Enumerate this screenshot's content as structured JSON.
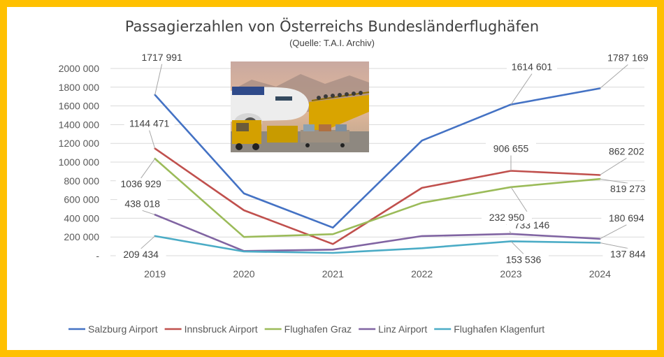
{
  "chart_data": {
    "type": "line",
    "title": "Passagierzahlen von Österreichs Bundesländerflughäfen",
    "subtitle": "(Quelle: T.A.I. Archiv)",
    "xlabel": "",
    "ylabel": "",
    "categories": [
      "2019",
      "2020",
      "2021",
      "2022",
      "2023",
      "2024"
    ],
    "ylim": [
      0,
      2000000
    ],
    "yticks": [
      "-",
      "200 000",
      "400 000",
      "600 000",
      "800 000",
      "1000 000",
      "1200 000",
      "1400 000",
      "1600 000",
      "1800 000",
      "2000 000"
    ],
    "grid": true,
    "legend_position": "bottom",
    "series": [
      {
        "name": "Salzburg Airport",
        "color": "#4472C4",
        "values": [
          1717991,
          665000,
          300000,
          1230000,
          1614601,
          1787169
        ]
      },
      {
        "name": "Innsbruck Airport",
        "color": "#C0504D",
        "values": [
          1144471,
          485000,
          125000,
          725000,
          906655,
          862202
        ]
      },
      {
        "name": "Flughafen Graz",
        "color": "#9BBB59",
        "values": [
          1036929,
          200000,
          230000,
          565000,
          733146,
          819273
        ]
      },
      {
        "name": "Linz Airport",
        "color": "#8064A2",
        "values": [
          438018,
          50000,
          65000,
          210000,
          232950,
          180694
        ]
      },
      {
        "name": "Flughafen Klagenfurt",
        "color": "#4BACC6",
        "values": [
          209434,
          45000,
          30000,
          80000,
          153536,
          137844
        ]
      }
    ],
    "data_labels": [
      {
        "series": 0,
        "index": 0,
        "text": "1717 991"
      },
      {
        "series": 0,
        "index": 4,
        "text": "1614 601"
      },
      {
        "series": 0,
        "index": 5,
        "text": "1787 169"
      },
      {
        "series": 1,
        "index": 0,
        "text": "1144 471"
      },
      {
        "series": 1,
        "index": 4,
        "text": "906 655"
      },
      {
        "series": 1,
        "index": 5,
        "text": "862 202"
      },
      {
        "series": 2,
        "index": 0,
        "text": "1036 929"
      },
      {
        "series": 2,
        "index": 4,
        "text": "733 146"
      },
      {
        "series": 2,
        "index": 5,
        "text": "819 273"
      },
      {
        "series": 3,
        "index": 0,
        "text": "438 018"
      },
      {
        "series": 3,
        "index": 4,
        "text": "232 950"
      },
      {
        "series": 3,
        "index": 5,
        "text": "180 694"
      },
      {
        "series": 4,
        "index": 0,
        "text": "209 434"
      },
      {
        "series": 4,
        "index": 4,
        "text": "153 536"
      },
      {
        "series": 4,
        "index": 5,
        "text": "137 844"
      }
    ],
    "image": "airplane-photo"
  },
  "colors": {
    "frame": "#FFC000",
    "background": "#FFFFFF",
    "grid": "#D9D9D9",
    "text": "#595959"
  }
}
